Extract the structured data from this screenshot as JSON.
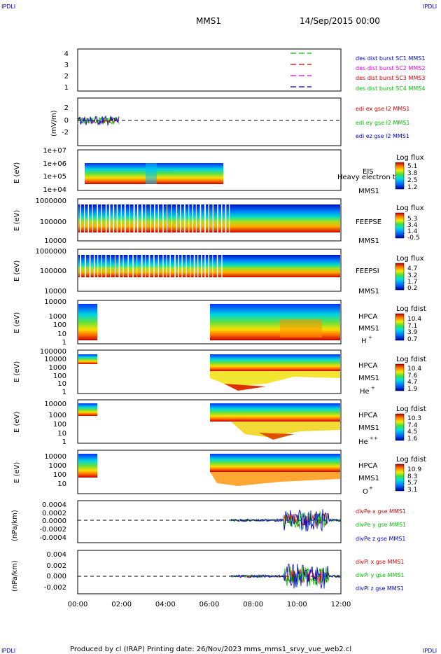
{
  "corner_labels": {
    "tl": "IPDLI",
    "tr": "IPDLI",
    "bl": "IPDLI",
    "br": "IPDLI"
  },
  "header": {
    "mission": "MMS1",
    "date": "14/Sep/2015 00:00"
  },
  "footer": {
    "text": "Produced by cl (IRAP)   Printing date: 26/Nov/2023   mms_mms1_srvy_vue_web2.cl"
  },
  "colors": {
    "red": "#d00000",
    "magenta": "#e000e0",
    "green": "#00c000",
    "blue": "#0000c0"
  },
  "chart_data": [
    {
      "type": "line",
      "panel": "burst",
      "ylim": [
        0.5,
        4.5
      ],
      "yticks": [
        "4",
        "3",
        "2",
        "1"
      ],
      "x": [
        "00:00",
        "02:00",
        "04:00",
        "06:00",
        "08:00",
        "10:00",
        "12:00"
      ],
      "series": [
        {
          "name": "des dist burst SC1 MMS1",
          "color": "#0000c0",
          "level": 1
        },
        {
          "name": "des dist burst SC2 MMS2",
          "color": "#e000e0",
          "level": 2
        },
        {
          "name": "des dist burst SC3 MMS3",
          "color": "#d00000",
          "level": 3
        },
        {
          "name": "des dist burst SC4 MMS4",
          "color": "#00c000",
          "level": 4
        }
      ]
    },
    {
      "type": "line",
      "panel": "edi",
      "ylabel": "(mV/m)",
      "ylim": [
        -3,
        3
      ],
      "yticks": [
        "2",
        "0",
        "-2"
      ],
      "series": [
        {
          "name": "edi ex gse l2 MMS1",
          "color": "#d00000"
        },
        {
          "name": "edi ey gse l2 MMS1",
          "color": "#00c000"
        },
        {
          "name": "edi ez gse l2 MMS1",
          "color": "#0000c0"
        }
      ]
    },
    {
      "type": "heatmap",
      "panel": "eis",
      "ylabel": "E (eV)",
      "yticks": [
        "1e+07",
        "1e+06",
        "1e+05",
        "1e+04"
      ],
      "labels": [
        "EIS",
        "MMS1"
      ],
      "overlay": "Heavy electron to",
      "colorbar": {
        "title": "Log flux",
        "ticks": [
          "5.1",
          "3.8",
          "2.5",
          "1.2"
        ]
      }
    },
    {
      "type": "heatmap",
      "panel": "feepse",
      "ylabel": "E (eV)",
      "yticks": [
        "1000000",
        "100000",
        "10000"
      ],
      "labels": [
        "FEEPSE",
        "MMS1"
      ],
      "colorbar": {
        "title": "Log flux",
        "ticks": [
          "5.3",
          "3.4",
          "1.4",
          "-0.5"
        ]
      }
    },
    {
      "type": "heatmap",
      "panel": "feepsi",
      "ylabel": "E (eV)",
      "yticks": [
        "1000000",
        "100000",
        "10000"
      ],
      "labels": [
        "FEEPSI",
        "MMS1"
      ],
      "colorbar": {
        "title": "Log flux",
        "ticks": [
          "4.7",
          "3.2",
          "1.7",
          "0.2"
        ]
      }
    },
    {
      "type": "heatmap",
      "panel": "hpca_h",
      "ylabel": "E (eV)",
      "yticks": [
        "10000",
        "1000",
        "100",
        "10",
        "1"
      ],
      "labels": [
        "HPCA",
        "MMS1",
        "H",
        "+"
      ],
      "colorbar": {
        "title": "Log fdist",
        "ticks": [
          "10.4",
          "7.1",
          "3.9",
          "0.7"
        ]
      }
    },
    {
      "type": "heatmap",
      "panel": "hpca_he",
      "ylabel": "E (eV)",
      "yticks": [
        "100000",
        "10000",
        "1000",
        "100",
        "10",
        "1"
      ],
      "labels": [
        "HPCA",
        "MMS1",
        "He",
        "+"
      ],
      "colorbar": {
        "title": "Log fdist",
        "ticks": [
          "10.4",
          "7.6",
          "4.7",
          "1.9"
        ]
      }
    },
    {
      "type": "heatmap",
      "panel": "hpca_hepp",
      "ylabel": "E (eV)",
      "yticks": [
        "10000",
        "1000",
        "100",
        "10",
        "1"
      ],
      "labels": [
        "HPCA",
        "MMS1",
        "He",
        "++"
      ],
      "colorbar": {
        "title": "Log fdist",
        "ticks": [
          "10.3",
          "7.4",
          "4.5",
          "1.6"
        ]
      }
    },
    {
      "type": "heatmap",
      "panel": "hpca_o",
      "ylabel": "E (eV)",
      "yticks": [
        "10000",
        "1000",
        "100",
        "10"
      ],
      "labels": [
        "HPCA",
        "MMS1",
        "O",
        "+"
      ],
      "colorbar": {
        "title": "Log fdist",
        "ticks": [
          "10.9",
          "8.3",
          "5.7",
          "3.1"
        ]
      }
    },
    {
      "type": "line",
      "panel": "divpe",
      "ylabel": "(nPa/km)",
      "ylim": [
        -0.0006,
        0.0005
      ],
      "yticks": [
        "0.0004",
        "0.0002",
        "0.0000",
        "-0.0002",
        "-0.0004"
      ],
      "series": [
        {
          "name": "divPe x gse MMS1",
          "color": "#d00000"
        },
        {
          "name": "divPe y gse MMS1",
          "color": "#00c000"
        },
        {
          "name": "divPe z gse MMS1",
          "color": "#0000c0"
        }
      ]
    },
    {
      "type": "line",
      "panel": "divpi",
      "ylabel": "(nPa/km)",
      "ylim": [
        -0.0035,
        0.0045
      ],
      "yticks": [
        "0.004",
        "0.002",
        "0.000",
        "-0.002"
      ],
      "series": [
        {
          "name": "divPi x gse MMS1",
          "color": "#d00000"
        },
        {
          "name": "divPi y gse MMS1",
          "color": "#00c000"
        },
        {
          "name": "divPi z gse MMS1",
          "color": "#0000c0"
        }
      ],
      "xticks": [
        "00:00",
        "02:00",
        "04:00",
        "06:00",
        "08:00",
        "10:00",
        "12:00"
      ]
    }
  ]
}
